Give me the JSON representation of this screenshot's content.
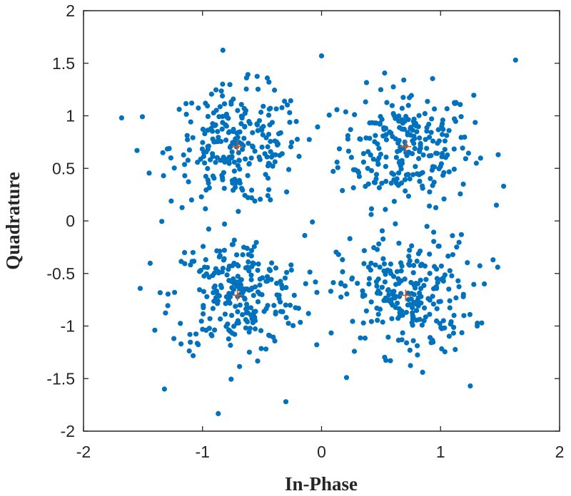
{
  "chart_data": {
    "type": "scatter",
    "title": "",
    "xlabel": "In-Phase",
    "ylabel": "Quadrature",
    "xlim": [
      -2,
      2
    ],
    "ylim": [
      -2,
      2
    ],
    "xticks": [
      -2,
      -1,
      0,
      1,
      2
    ],
    "yticks": [
      -2,
      -1.5,
      -1,
      -0.5,
      0,
      0.5,
      1,
      1.5,
      2
    ],
    "xtick_labels": [
      "-2",
      "-1",
      "0",
      "1",
      "2"
    ],
    "ytick_labels": [
      "-2",
      "-1.5",
      "-1",
      "-0.5",
      "0",
      "0.5",
      "1",
      "1.5",
      "2"
    ],
    "grid": false,
    "legend": "none",
    "colors": {
      "points": "#0072bd",
      "reference": "#d95319",
      "axes": "#262626"
    },
    "ideal_constellation": [
      [
        0.707,
        0.707
      ],
      [
        -0.707,
        0.707
      ],
      [
        -0.707,
        -0.707
      ],
      [
        0.707,
        -0.707
      ]
    ],
    "received_symbols": {
      "note_count": 1000,
      "noise_std": 0.28,
      "outlier_points": [
        [
          -1.68,
          0.98
        ],
        [
          -1.55,
          0.67
        ],
        [
          -0.3,
          -1.72
        ],
        [
          1.63,
          1.53
        ],
        [
          0.0,
          1.57
        ],
        [
          -1.32,
          -1.6
        ],
        [
          1.25,
          -1.57
        ],
        [
          0.21,
          -1.49
        ],
        [
          1.48,
          -0.44
        ],
        [
          1.53,
          0.33
        ]
      ],
      "points": []
    }
  }
}
